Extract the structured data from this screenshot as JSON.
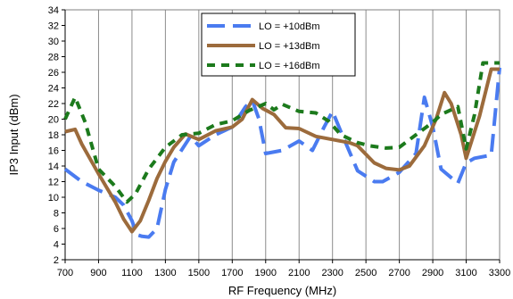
{
  "chart_data": {
    "type": "line",
    "xlabel": "RF Frequency (MHz)",
    "ylabel": "IP3 Input (dBm)",
    "xlim": [
      700,
      3300
    ],
    "ylim": [
      2,
      34
    ],
    "x_ticks": [
      700,
      900,
      1100,
      1300,
      1500,
      1700,
      1900,
      2100,
      2300,
      2500,
      2700,
      2900,
      3100,
      3300
    ],
    "y_ticks": [
      2,
      4,
      6,
      8,
      10,
      12,
      14,
      16,
      18,
      20,
      22,
      24,
      26,
      28,
      30,
      32,
      34
    ],
    "grid": {
      "vertical": true,
      "horizontal": false
    },
    "legend": {
      "position": "top-center"
    },
    "series": [
      {
        "name": "LO = +10dBm",
        "color": "#4a7bf0",
        "style": "long-dash",
        "points": [
          [
            700,
            13.6
          ],
          [
            800,
            12
          ],
          [
            900,
            10.9
          ],
          [
            1000,
            10
          ],
          [
            1050,
            9
          ],
          [
            1100,
            7
          ],
          [
            1130,
            5.2
          ],
          [
            1160,
            5
          ],
          [
            1200,
            4.9
          ],
          [
            1250,
            6
          ],
          [
            1300,
            11
          ],
          [
            1350,
            14.5
          ],
          [
            1450,
            17.8
          ],
          [
            1500,
            16.6
          ],
          [
            1600,
            18
          ],
          [
            1700,
            19
          ],
          [
            1780,
            21.6
          ],
          [
            1820,
            22.4
          ],
          [
            1860,
            20
          ],
          [
            1900,
            15.6
          ],
          [
            2000,
            16
          ],
          [
            2100,
            17.2
          ],
          [
            2180,
            16
          ],
          [
            2250,
            19
          ],
          [
            2300,
            21
          ],
          [
            2350,
            18.4
          ],
          [
            2450,
            13.4
          ],
          [
            2550,
            12
          ],
          [
            2600,
            12
          ],
          [
            2700,
            13.2
          ],
          [
            2800,
            15.6
          ],
          [
            2850,
            22.8
          ],
          [
            2900,
            19
          ],
          [
            2950,
            13.6
          ],
          [
            3050,
            11.8
          ],
          [
            3100,
            14.4
          ],
          [
            3150,
            15
          ],
          [
            3250,
            15.4
          ],
          [
            3300,
            26.6
          ]
        ]
      },
      {
        "name": "LO = +13dBm",
        "color": "#9c6b3c",
        "style": "solid",
        "points": [
          [
            700,
            18.4
          ],
          [
            760,
            18.7
          ],
          [
            800,
            16.8
          ],
          [
            900,
            13
          ],
          [
            1000,
            9.4
          ],
          [
            1050,
            7.2
          ],
          [
            1100,
            5.6
          ],
          [
            1150,
            7
          ],
          [
            1200,
            9.6
          ],
          [
            1250,
            12.4
          ],
          [
            1300,
            14.6
          ],
          [
            1350,
            16.4
          ],
          [
            1420,
            18.1
          ],
          [
            1500,
            17.4
          ],
          [
            1600,
            18.5
          ],
          [
            1700,
            19
          ],
          [
            1760,
            20
          ],
          [
            1820,
            22.5
          ],
          [
            1880,
            21.4
          ],
          [
            1950,
            20.6
          ],
          [
            2020,
            18.9
          ],
          [
            2100,
            18.8
          ],
          [
            2200,
            17.8
          ],
          [
            2300,
            17.4
          ],
          [
            2400,
            17
          ],
          [
            2450,
            16.6
          ],
          [
            2550,
            14.4
          ],
          [
            2620,
            13.7
          ],
          [
            2700,
            13.5
          ],
          [
            2760,
            14
          ],
          [
            2850,
            16.6
          ],
          [
            2920,
            20
          ],
          [
            2970,
            23.4
          ],
          [
            3010,
            22
          ],
          [
            3070,
            18
          ],
          [
            3100,
            15
          ],
          [
            3180,
            20.4
          ],
          [
            3250,
            26.4
          ],
          [
            3300,
            26.4
          ]
        ]
      },
      {
        "name": "LO = +16dBm",
        "color": "#1c7a1c",
        "style": "short-dash",
        "points": [
          [
            700,
            20
          ],
          [
            760,
            22.8
          ],
          [
            820,
            19.6
          ],
          [
            900,
            13.6
          ],
          [
            1000,
            11.4
          ],
          [
            1070,
            9.4
          ],
          [
            1120,
            10.4
          ],
          [
            1200,
            13.6
          ],
          [
            1300,
            16.4
          ],
          [
            1400,
            18
          ],
          [
            1500,
            18.2
          ],
          [
            1600,
            19.3
          ],
          [
            1700,
            19.8
          ],
          [
            1800,
            21.1
          ],
          [
            1900,
            22
          ],
          [
            1950,
            21.2
          ],
          [
            2000,
            21.9
          ],
          [
            2100,
            21
          ],
          [
            2200,
            20.8
          ],
          [
            2280,
            19.7
          ],
          [
            2350,
            18
          ],
          [
            2450,
            17
          ],
          [
            2520,
            16.6
          ],
          [
            2620,
            16.3
          ],
          [
            2700,
            16.4
          ],
          [
            2800,
            18
          ],
          [
            2900,
            19.6
          ],
          [
            2950,
            20.6
          ],
          [
            3050,
            21.6
          ],
          [
            3100,
            16.2
          ],
          [
            3150,
            20.6
          ],
          [
            3200,
            27.2
          ],
          [
            3300,
            27.2
          ]
        ]
      }
    ]
  }
}
